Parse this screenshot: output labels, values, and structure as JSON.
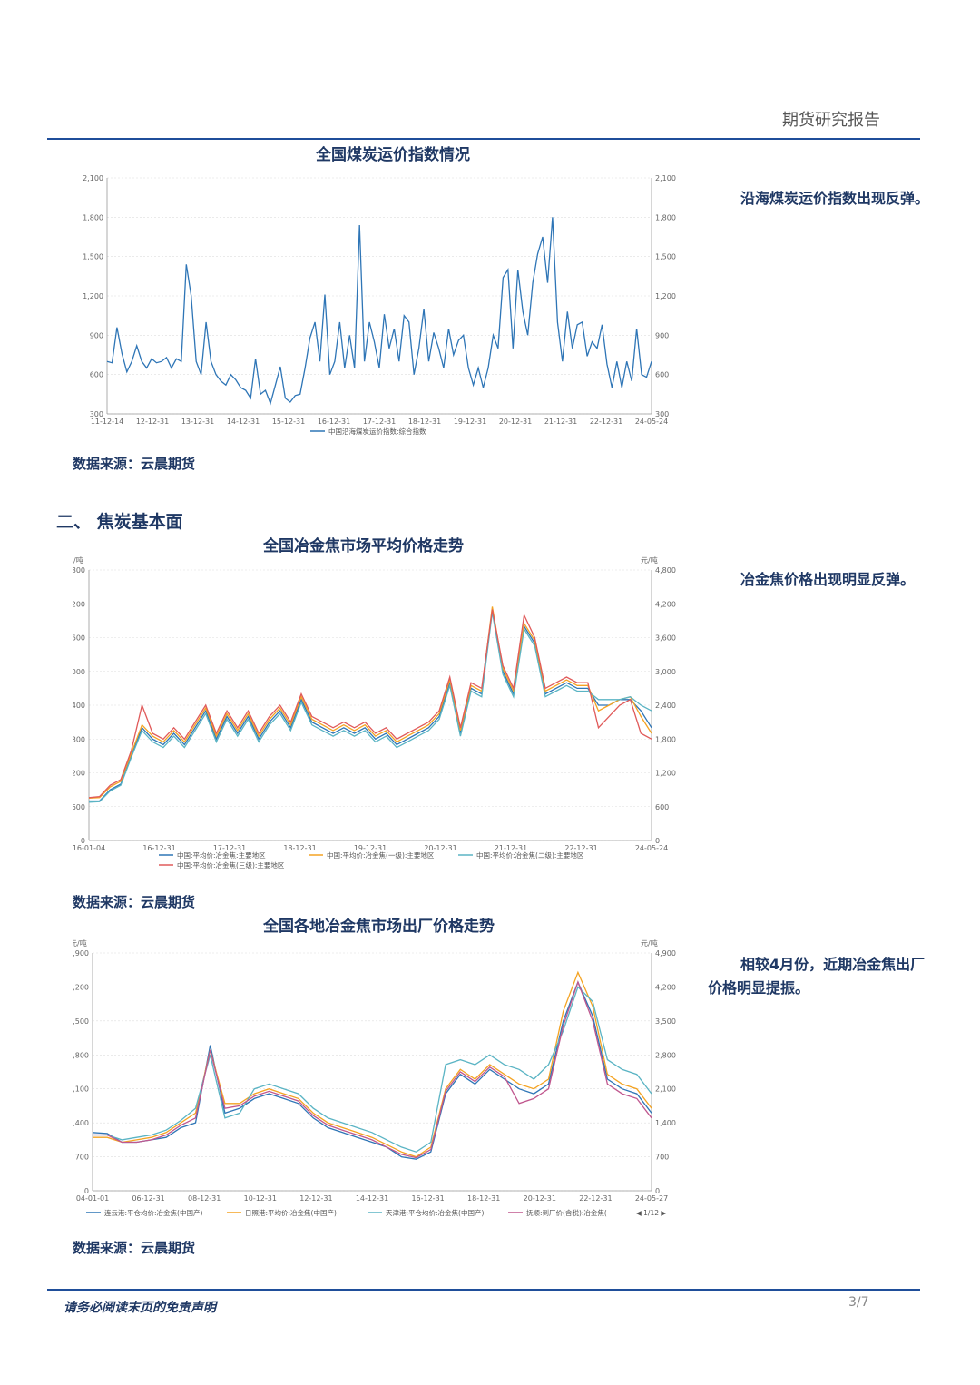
{
  "header": {
    "title": "期货研究报告"
  },
  "chart1": {
    "title": "全国煤炭运价指数情况",
    "side_text": "沿海煤炭运价指数出现反弹。",
    "source": "数据来源：云晨期货"
  },
  "section2": {
    "title": "二、 焦炭基本面"
  },
  "chart2": {
    "title": "全国冶金焦市场平均价格走势",
    "side_text": "冶金焦价格出现明显反弹。",
    "source": "数据来源：云晨期货"
  },
  "chart3": {
    "title": "全国各地冶金焦市场出厂价格走势",
    "side_text": "相较4月份，近期冶金焦出厂价格明显提振。",
    "source": "数据来源：云晨期货"
  },
  "footer": {
    "note": "请务必阅读末页的免责声明",
    "page": "3/7"
  },
  "chart_data": [
    {
      "type": "line",
      "ylim": [
        300,
        2100
      ],
      "yticks": [
        "2,100",
        "1,800",
        "1,500",
        "1,200",
        "900",
        "600",
        "300"
      ],
      "xticks": [
        "11-12-14",
        "12-12-31",
        "13-12-31",
        "14-12-31",
        "15-12-31",
        "16-12-31",
        "17-12-31",
        "18-12-31",
        "19-12-31",
        "20-12-31",
        "21-12-31",
        "22-12-31",
        "24-05-24"
      ],
      "series": [
        {
          "name": "中国沿海煤炭运价指数:综合指数",
          "color": "#2e75b6",
          "values": [
            700,
            690,
            960,
            760,
            620,
            700,
            820,
            700,
            650,
            720,
            690,
            700,
            730,
            650,
            720,
            700,
            1440,
            1200,
            700,
            600,
            1000,
            700,
            600,
            550,
            520,
            600,
            560,
            500,
            480,
            420,
            720,
            450,
            480,
            380,
            520,
            660,
            420,
            390,
            440,
            450,
            650,
            880,
            1000,
            700,
            1210,
            600,
            700,
            1000,
            650,
            900,
            650,
            1740,
            700,
            1000,
            850,
            650,
            1060,
            800,
            950,
            700,
            1050,
            1000,
            600,
            800,
            1100,
            700,
            920,
            800,
            650,
            950,
            750,
            860,
            900,
            650,
            520,
            650,
            500,
            650,
            900,
            800,
            1340,
            1400,
            800,
            1400,
            1080,
            900,
            1300,
            1520,
            1650,
            1300,
            1800,
            1000,
            700,
            1080,
            800,
            980,
            1000,
            740,
            850,
            800,
            980,
            680,
            500,
            700,
            500,
            700,
            550,
            950,
            600,
            580,
            700
          ]
        }
      ]
    },
    {
      "type": "line",
      "ylim": [
        0,
        4800
      ],
      "yticks": [
        "4,800",
        "4,200",
        "3,600",
        "3,000",
        "2,400",
        "1,800",
        "1,200",
        "600",
        "0"
      ],
      "xticks": [
        "16-01-04",
        "16-12-31",
        "17-12-31",
        "18-12-31",
        "19-12-31",
        "20-12-31",
        "21-12-31",
        "22-12-31",
        "24-05-24"
      ],
      "series": [
        {
          "name": "中国:平均价:冶金焦:主要地区",
          "color": "#2e75b6",
          "values": [
            700,
            700,
            900,
            1000,
            1500,
            2000,
            1800,
            1700,
            1900,
            1700,
            2000,
            2300,
            1800,
            2200,
            1900,
            2200,
            1800,
            2100,
            2300,
            2000,
            2500,
            2100,
            2000,
            1900,
            2000,
            1900,
            2000,
            1800,
            1900,
            1700,
            1800,
            1900,
            2000,
            2200,
            2800,
            1900,
            2700,
            2600,
            4100,
            3000,
            2600,
            3800,
            3500,
            2600,
            2700,
            2800,
            2700,
            2700,
            2400,
            2400,
            2500,
            2500,
            2300,
            2000
          ]
        },
        {
          "name": "中国:平均价:冶金焦(一级):主要地区",
          "color": "#f4a322",
          "values": [
            750,
            760,
            950,
            1050,
            1550,
            2050,
            1850,
            1750,
            1950,
            1750,
            2050,
            2350,
            1850,
            2250,
            1950,
            2250,
            1850,
            2150,
            2350,
            2050,
            2550,
            2150,
            2050,
            1950,
            2050,
            1950,
            2050,
            1850,
            1950,
            1750,
            1850,
            1950,
            2050,
            2250,
            2850,
            1950,
            2750,
            2650,
            4150,
            3050,
            2650,
            3850,
            3550,
            2650,
            2750,
            2850,
            2750,
            2750,
            2300,
            2400,
            2500,
            2550,
            2200,
            1900
          ]
        },
        {
          "name": "中国:平均价:冶金焦(二级):主要地区",
          "color": "#5ab4c4",
          "values": [
            680,
            690,
            880,
            980,
            1480,
            1950,
            1750,
            1650,
            1850,
            1650,
            1950,
            2250,
            1750,
            2150,
            1850,
            2150,
            1750,
            2050,
            2250,
            1950,
            2450,
            2050,
            1950,
            1850,
            1950,
            1850,
            1950,
            1750,
            1850,
            1650,
            1750,
            1850,
            1950,
            2150,
            2750,
            1850,
            2650,
            2550,
            4050,
            2950,
            2550,
            3750,
            3450,
            2550,
            2650,
            2750,
            2650,
            2650,
            2500,
            2500,
            2500,
            2550,
            2400,
            2300
          ]
        },
        {
          "name": "中国:平均价:冶金焦(三级):主要地区",
          "color": "#e05a5a",
          "values": [
            760,
            780,
            980,
            1080,
            1600,
            2400,
            1900,
            1800,
            2000,
            1800,
            2100,
            2400,
            1900,
            2300,
            2000,
            2300,
            1900,
            2200,
            2400,
            2100,
            2600,
            2200,
            2100,
            2000,
            2100,
            2000,
            2100,
            1900,
            2000,
            1800,
            1900,
            2000,
            2100,
            2300,
            2900,
            2000,
            2800,
            2700,
            4100,
            3100,
            2700,
            4000,
            3600,
            2700,
            2800,
            2900,
            2800,
            2800,
            2000,
            2200,
            2400,
            2500,
            1900,
            1800
          ]
        }
      ]
    },
    {
      "type": "line",
      "ylim": [
        0,
        4900
      ],
      "yticks": [
        "4,900",
        "4,200",
        "3,500",
        "2,800",
        "2,100",
        "1,400",
        "700",
        "0"
      ],
      "xticks": [
        "04-01-01",
        "06-12-31",
        "08-12-31",
        "10-12-31",
        "12-12-31",
        "14-12-31",
        "16-12-31",
        "18-12-31",
        "20-12-31",
        "22-12-31",
        "24-05-27"
      ],
      "legend_page": "1/12",
      "series": [
        {
          "name": "连云港:平仓均价:冶金焦(中国产)",
          "color": "#2e75b6",
          "values": [
            1200,
            1180,
            1000,
            1000,
            1050,
            1100,
            1300,
            1400,
            3000,
            1600,
            1700,
            1900,
            2000,
            1900,
            1800,
            1500,
            1300,
            1200,
            1100,
            1000,
            900,
            700,
            650,
            800,
            2000,
            2400,
            2200,
            2500,
            2300,
            2100,
            2000,
            2200,
            3500,
            4300,
            3600,
            2300,
            2100,
            2000,
            1600
          ]
        },
        {
          "name": "日照港:平均价:冶金焦(中国产)",
          "color": "#f4a322",
          "values": [
            1100,
            1100,
            1000,
            1050,
            1100,
            1200,
            1400,
            1600,
            2900,
            1800,
            1800,
            2000,
            2100,
            2000,
            1900,
            1600,
            1400,
            1300,
            1200,
            1100,
            950,
            800,
            700,
            900,
            2100,
            2500,
            2300,
            2600,
            2400,
            2200,
            2100,
            2300,
            3700,
            4500,
            3800,
            2400,
            2200,
            2100,
            1700
          ]
        },
        {
          "name": "天津港:平仓均价:冶金焦(中国产)",
          "color": "#5ab4c4",
          "values": [
            1150,
            1150,
            1050,
            1100,
            1150,
            1250,
            1450,
            1700,
            2800,
            1500,
            1600,
            2100,
            2200,
            2100,
            2000,
            1700,
            1500,
            1400,
            1300,
            1200,
            1050,
            900,
            800,
            1000,
            2600,
            2700,
            2600,
            2800,
            2600,
            2500,
            2300,
            2600,
            3300,
            4200,
            3900,
            2700,
            2500,
            2400,
            2000
          ]
        },
        {
          "name": "抚顺:到厂价(含税):冶金焦(",
          "color": "#c0578e",
          "values": [
            1150,
            1150,
            1000,
            1000,
            1050,
            1150,
            1350,
            1500,
            2900,
            1700,
            1750,
            1950,
            2050,
            1950,
            1850,
            1550,
            1350,
            1250,
            1150,
            1050,
            900,
            750,
            680,
            850,
            2050,
            2450,
            2250,
            2550,
            2350,
            1800,
            1900,
            2100,
            3400,
            4300,
            3500,
            2200,
            2000,
            1900,
            1500
          ]
        }
      ]
    }
  ]
}
